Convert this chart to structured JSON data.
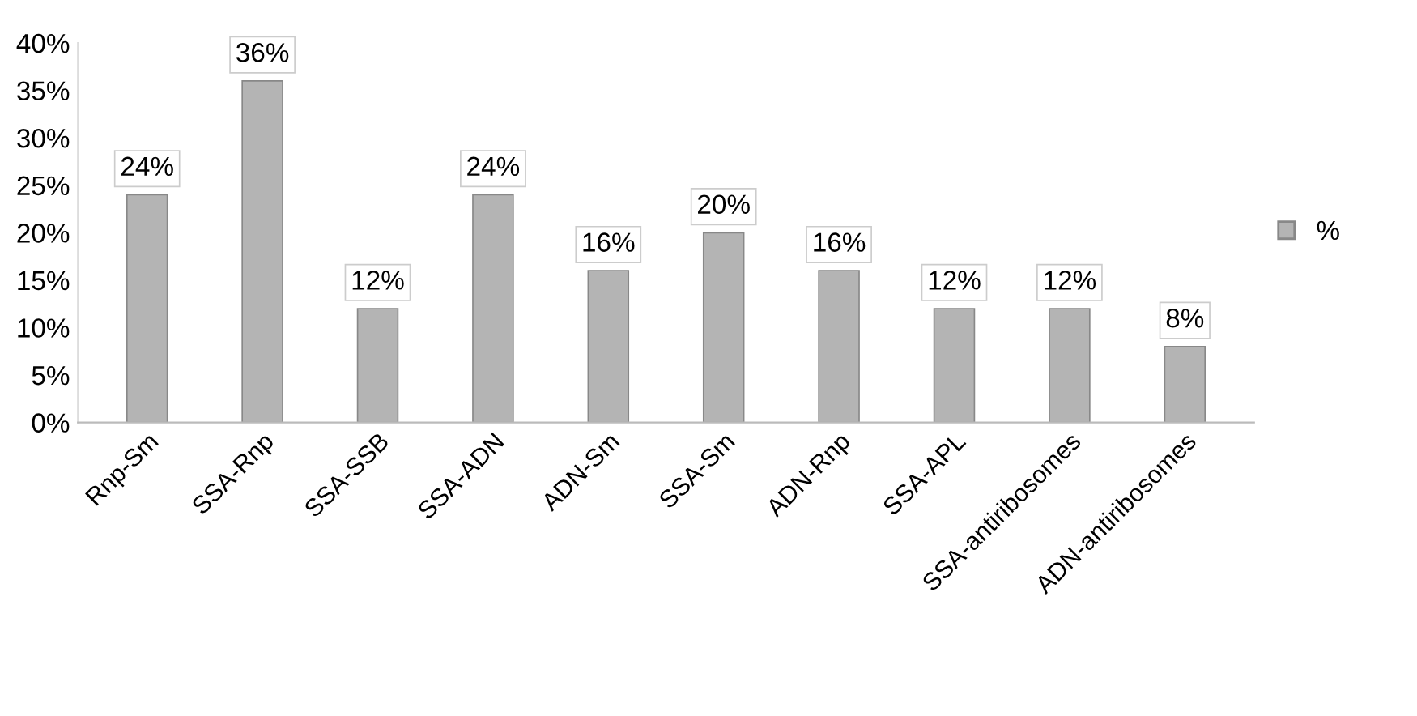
{
  "chart_data": {
    "type": "bar",
    "categories": [
      "Rnp-Sm",
      "SSA-Rnp",
      "SSA-SSB",
      "SSA-ADN",
      "ADN-Sm",
      "SSA-Sm",
      "ADN-Rnp",
      "SSA-APL",
      "SSA-antiribosomes",
      "ADN-antiribosomes"
    ],
    "series": [
      {
        "name": "%",
        "color": "#b4b4b4",
        "values": [
          24,
          36,
          12,
          24,
          16,
          20,
          16,
          12,
          12,
          8
        ]
      }
    ],
    "value_labels": [
      "24%",
      "36%",
      "12%",
      "24%",
      "16%",
      "20%",
      "16%",
      "12%",
      "12%",
      "8%"
    ],
    "ylim": [
      0,
      40
    ],
    "yticks": [
      {
        "value": 0,
        "label": "0%"
      },
      {
        "value": 5,
        "label": "5%"
      },
      {
        "value": 10,
        "label": "10%"
      },
      {
        "value": 15,
        "label": "15%"
      },
      {
        "value": 20,
        "label": "20%"
      },
      {
        "value": 25,
        "label": "25%"
      },
      {
        "value": 30,
        "label": "30%"
      },
      {
        "value": 35,
        "label": "35%"
      },
      {
        "value": 40,
        "label": "40%"
      }
    ],
    "grid": false,
    "legend": "right"
  }
}
